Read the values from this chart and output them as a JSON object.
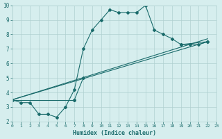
{
  "xlabel": "Humidex (Indice chaleur)",
  "ylabel": "",
  "bg_color": "#d6eeee",
  "grid_color": "#b0d0d0",
  "line_color": "#1a6b6b",
  "xlim": [
    0,
    23
  ],
  "ylim": [
    2,
    10
  ],
  "xticks": [
    0,
    1,
    2,
    3,
    4,
    5,
    6,
    7,
    8,
    9,
    10,
    11,
    12,
    13,
    14,
    15,
    16,
    17,
    18,
    19,
    20,
    21,
    22,
    23
  ],
  "yticks": [
    2,
    3,
    4,
    5,
    6,
    7,
    8,
    9,
    10
  ],
  "series": [
    {
      "x": [
        0,
        1,
        2,
        3,
        4,
        5,
        6,
        7,
        8,
        9,
        10,
        11,
        12,
        13,
        14,
        15,
        16,
        17,
        18,
        19,
        20,
        21,
        22,
        23
      ],
      "y": [
        3.5,
        3.3,
        3.3,
        2.5,
        2.5,
        2.3,
        3.0,
        4.2,
        7.0,
        8.3,
        9.0,
        9.7,
        9.5,
        9.5,
        9.5,
        10.0,
        8.3,
        8.0,
        7.7,
        7.3,
        7.3,
        7.3,
        7.5,
        null
      ]
    },
    {
      "x": [
        0,
        1,
        2,
        3,
        4,
        5,
        6,
        7,
        8,
        9,
        10,
        11,
        12,
        13,
        14,
        15,
        16,
        17,
        18,
        19,
        20,
        21,
        22,
        23
      ],
      "y": [
        3.5,
        null,
        null,
        null,
        null,
        null,
        null,
        3.5,
        5.0,
        null,
        null,
        null,
        null,
        null,
        null,
        null,
        null,
        null,
        null,
        7.3,
        null,
        null,
        7.5,
        null
      ]
    },
    {
      "x": [
        0,
        23
      ],
      "y": [
        3.5,
        7.5
      ]
    },
    {
      "x": [
        0,
        23
      ],
      "y": [
        3.5,
        7.7
      ]
    }
  ]
}
